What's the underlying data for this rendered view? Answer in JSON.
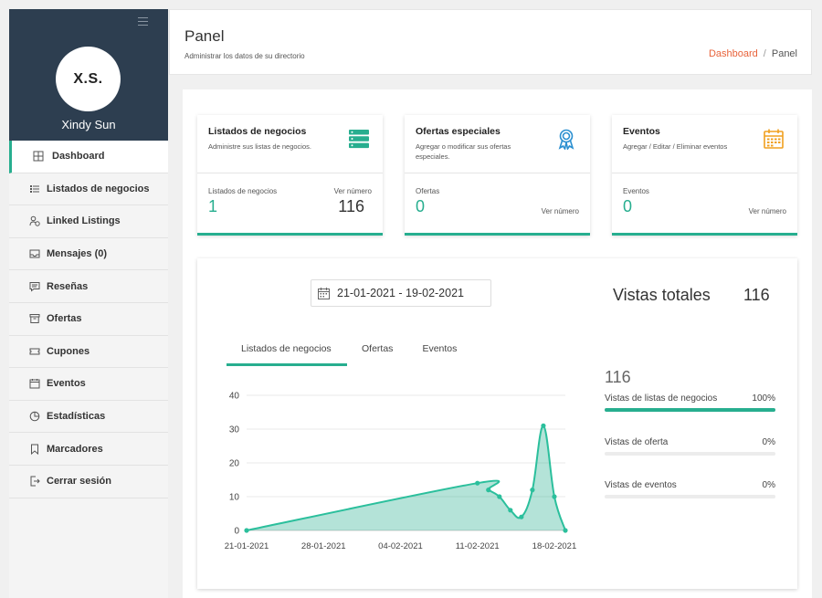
{
  "sidebar": {
    "avatar_initials": "X.S.",
    "username": "Xindy Sun",
    "items": [
      {
        "label": "Dashboard",
        "icon": "grid-icon"
      },
      {
        "label": "Listados de negocios",
        "icon": "list-icon"
      },
      {
        "label": "Linked Listings",
        "icon": "user-link-icon"
      },
      {
        "label": "Mensajes (0)",
        "icon": "inbox-icon"
      },
      {
        "label": "Reseñas",
        "icon": "comment-icon"
      },
      {
        "label": "Ofertas",
        "icon": "archive-icon"
      },
      {
        "label": "Cupones",
        "icon": "ticket-icon"
      },
      {
        "label": "Eventos",
        "icon": "calendar-icon"
      },
      {
        "label": "Estadísticas",
        "icon": "pie-chart-icon"
      },
      {
        "label": "Marcadores",
        "icon": "bookmark-icon"
      },
      {
        "label": "Cerrar sesión",
        "icon": "logout-icon"
      }
    ]
  },
  "header": {
    "title": "Panel",
    "subtitle": "Administrar los datos de su directorio",
    "breadcrumb_link": "Dashboard",
    "breadcrumb_sep": "/",
    "breadcrumb_current": "Panel"
  },
  "cards": [
    {
      "title": "Listados de negocios",
      "desc": "Administre sus listas de negocios.",
      "icon": "server-icon",
      "stat_label": "Listados de negocios",
      "stat_value": "1",
      "right_label": "Ver número",
      "right_value": "116"
    },
    {
      "title": "Ofertas especiales",
      "desc": "Agregar o modificar sus ofertas especiales.",
      "icon": "award-icon",
      "stat_label": "Ofertas",
      "stat_value": "0",
      "link": "Ver número"
    },
    {
      "title": "Eventos",
      "desc": "Agregar / Editar / Eliminar eventos",
      "icon": "calendar-icon",
      "stat_label": "Eventos",
      "stat_value": "0",
      "link": "Ver número"
    }
  ],
  "stats": {
    "date_range": "21-01-2021 - 19-02-2021",
    "total_label": "Vistas totales",
    "total_value": "116",
    "tabs": [
      "Listados de negocios",
      "Ofertas",
      "Eventos"
    ],
    "side_total": "116",
    "bars": [
      {
        "label": "Vistas de listas de negocios",
        "pct": "100%",
        "fraction": 1.0
      },
      {
        "label": "Vistas de oferta",
        "pct": "0%",
        "fraction": 0
      },
      {
        "label": "Vistas de eventos",
        "pct": "0%",
        "fraction": 0
      }
    ]
  },
  "colors": {
    "accent": "#27ae8f",
    "brand_dark": "#2d3e50",
    "link": "#e8623a",
    "calendar": "#f0a020",
    "award": "#2a8fd0"
  },
  "chart_data": {
    "type": "area",
    "x": [
      "21-01-2021",
      "11-02-2021",
      "12-02-2021",
      "13-02-2021",
      "14-02-2021",
      "15-02-2021",
      "16-02-2021",
      "17-02-2021",
      "18-02-2021",
      "19-02-2021"
    ],
    "y": [
      0,
      14,
      12,
      10,
      6,
      4,
      12,
      31,
      10,
      0
    ],
    "x_tick_labels": [
      "21-01-2021",
      "28-01-2021",
      "04-02-2021",
      "11-02-2021",
      "18-02-2021"
    ],
    "y_ticks": [
      0,
      10,
      20,
      30,
      40
    ],
    "ylim": [
      0,
      40
    ],
    "grid": true
  }
}
